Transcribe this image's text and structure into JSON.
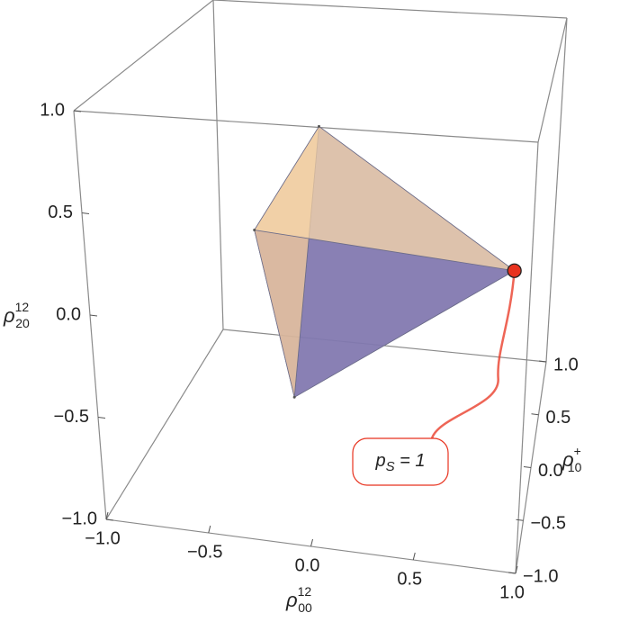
{
  "chart_data": {
    "type": "polyhedron3d",
    "x": [
      -0.1,
      -0.48,
      0.9,
      -0.24
    ],
    "y": [
      -0.2,
      0,
      -0.6,
      -0.2
    ],
    "z": [
      0.75,
      0.1,
      0.25,
      -0.67
    ],
    "face_colors": [
      "#8e77a2",
      "#7d78b3",
      "#e9c49a",
      "#f2cfa3"
    ],
    "face_opacity": 0.75,
    "marker": {
      "x": 0.9,
      "y": -0.6,
      "z": 0.25,
      "color": "#e8321e"
    },
    "annotation": {
      "symbol": "p",
      "subscript": "S",
      "text": " = 1"
    },
    "xlim": [
      -1,
      1
    ],
    "ylim": [
      -1,
      1
    ],
    "zlim": [
      -1,
      1
    ],
    "xticks": [
      {
        "value": -1,
        "label": "−1.0"
      },
      {
        "value": -0.5,
        "label": "−0.5"
      },
      {
        "value": 0,
        "label": "0.0"
      },
      {
        "value": 0.5,
        "label": "0.5"
      },
      {
        "value": 1,
        "label": "1.0"
      }
    ],
    "yticks": [
      {
        "value": -1,
        "label": "−1.0"
      },
      {
        "value": -0.5,
        "label": "−0.5"
      },
      {
        "value": 0,
        "label": "0.0"
      },
      {
        "value": 0.5,
        "label": "0.5"
      },
      {
        "value": 1,
        "label": "1.0"
      }
    ],
    "zticks": [
      {
        "value": -1,
        "label": "−1.0"
      },
      {
        "value": -0.5,
        "label": "−0.5"
      },
      {
        "value": 0,
        "label": "0.0"
      },
      {
        "value": 0.5,
        "label": "0.5"
      },
      {
        "value": 1,
        "label": "1.0"
      }
    ],
    "xlabel": {
      "symbol": "ρ",
      "superscript": "12",
      "subscript": "00"
    },
    "ylabel": {
      "symbol": "ρ",
      "superscript": "+",
      "subscript": "10"
    },
    "zlabel": {
      "symbol": "ρ",
      "superscript": "12",
      "subscript": "20"
    }
  }
}
